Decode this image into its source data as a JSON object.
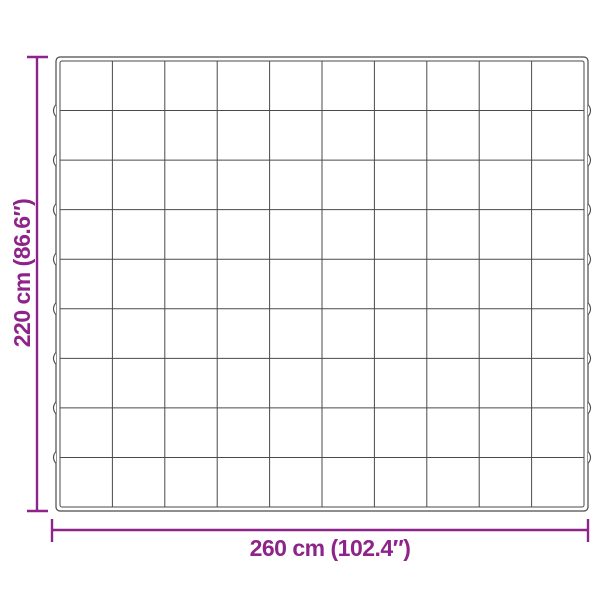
{
  "diagram": {
    "type": "product-dimension-diagram",
    "subject": "quilted blanket top view",
    "grid": {
      "columns": 10,
      "rows": 9
    },
    "dimensions": {
      "height": {
        "label": "220 cm (86.6″)",
        "value_cm": 220,
        "value_inches": 86.6
      },
      "width": {
        "label": "260 cm (102.4″)",
        "value_cm": 260,
        "value_inches": 102.4
      }
    },
    "colors": {
      "accent": "#8E2389",
      "outline": "#4A4A4A",
      "background": "#FFFFFF"
    }
  }
}
